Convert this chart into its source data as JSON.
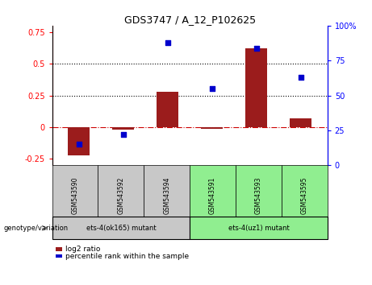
{
  "title": "GDS3747 / A_12_P102625",
  "samples": [
    "GSM543590",
    "GSM543592",
    "GSM543594",
    "GSM543591",
    "GSM543593",
    "GSM543595"
  ],
  "log2_ratio": [
    -0.22,
    -0.02,
    0.28,
    -0.01,
    0.62,
    0.07
  ],
  "percentile_rank": [
    15,
    22,
    88,
    55,
    84,
    63
  ],
  "group1_label": "ets-4(ok165) mutant",
  "group2_label": "ets-4(uz1) mutant",
  "group1_indices": [
    0,
    1,
    2
  ],
  "group2_indices": [
    3,
    4,
    5
  ],
  "left_ylim": [
    -0.3,
    0.8
  ],
  "right_ylim": [
    0,
    100
  ],
  "left_yticks": [
    -0.25,
    0,
    0.25,
    0.5,
    0.75
  ],
  "right_yticks": [
    0,
    25,
    50,
    75,
    100
  ],
  "hline_y_left": [
    0.25,
    0.5
  ],
  "bar_color": "#9B1C1C",
  "scatter_color": "#0000CC",
  "group1_bg": "#C8C8C8",
  "group2_bg": "#90EE90",
  "zero_line_color": "#CC0000",
  "legend_label_bar": "log2 ratio",
  "legend_label_scatter": "percentile rank within the sample",
  "genotype_label": "genotype/variation",
  "bar_width": 0.5
}
